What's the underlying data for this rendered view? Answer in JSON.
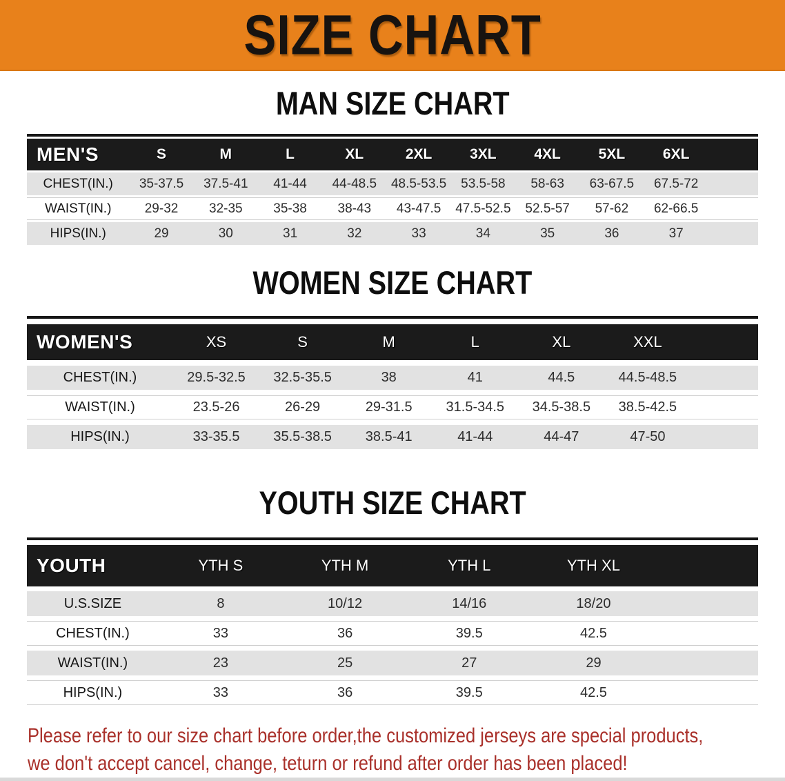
{
  "banner": {
    "title": "SIZE CHART"
  },
  "sections": [
    {
      "heading": "MAN SIZE CHART",
      "corner_label": "MEN'S",
      "columns": [
        "S",
        "M",
        "L",
        "XL",
        "2XL",
        "3XL",
        "4XL",
        "5XL",
        "6XL"
      ],
      "rows": [
        {
          "label": "CHEST(IN.)",
          "values": [
            "35-37.5",
            "37.5-41",
            "41-44",
            "44-48.5",
            "48.5-53.5",
            "53.5-58",
            "58-63",
            "63-67.5",
            "67.5-72"
          ]
        },
        {
          "label": "WAIST(IN.)",
          "values": [
            "29-32",
            "32-35",
            "35-38",
            "38-43",
            "43-47.5",
            "47.5-52.5",
            "52.5-57",
            "57-62",
            "62-66.5"
          ]
        },
        {
          "label": "HIPS(IN.)",
          "values": [
            "29",
            "30",
            "31",
            "32",
            "33",
            "34",
            "35",
            "36",
            "37"
          ]
        }
      ]
    },
    {
      "heading": "WOMEN SIZE CHART",
      "corner_label": "WOMEN'S",
      "columns": [
        "XS",
        "S",
        "M",
        "L",
        "XL",
        "XXL"
      ],
      "rows": [
        {
          "label": "CHEST(IN.)",
          "values": [
            "29.5-32.5",
            "32.5-35.5",
            "38",
            "41",
            "44.5",
            "44.5-48.5"
          ]
        },
        {
          "label": "WAIST(IN.)",
          "values": [
            "23.5-26",
            "26-29",
            "29-31.5",
            "31.5-34.5",
            "34.5-38.5",
            "38.5-42.5"
          ]
        },
        {
          "label": "HIPS(IN.)",
          "values": [
            "33-35.5",
            "35.5-38.5",
            "38.5-41",
            "41-44",
            "44-47",
            "47-50"
          ]
        }
      ]
    },
    {
      "heading": "YOUTH SIZE CHART",
      "corner_label": "YOUTH",
      "columns": [
        "YTH S",
        "YTH M",
        "YTH L",
        "YTH XL"
      ],
      "rows": [
        {
          "label": "U.S.SIZE",
          "values": [
            "8",
            "10/12",
            "14/16",
            "18/20"
          ]
        },
        {
          "label": "CHEST(IN.)",
          "values": [
            "33",
            "36",
            "39.5",
            "42.5"
          ]
        },
        {
          "label": "WAIST(IN.)",
          "values": [
            "23",
            "25",
            "27",
            "29"
          ]
        },
        {
          "label": "HIPS(IN.)",
          "values": [
            "33",
            "36",
            "39.5",
            "42.5"
          ]
        }
      ]
    }
  ],
  "disclaimer": {
    "line1": "Please refer to our size chart before order,the customized jerseys are special products,",
    "line2": "we don't accept cancel, change, teturn or refund after order has been placed!"
  },
  "colors": {
    "banner_bg": "#e8811b",
    "header_bar": "#1b1b1b",
    "row_gray": "#e2e2e2",
    "disclaimer_red": "#a9302a",
    "title_text": "#171310"
  }
}
